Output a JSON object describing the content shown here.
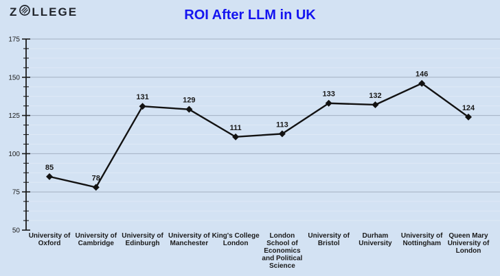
{
  "logo": {
    "prefix": "Z",
    "suffix": "LLEGE"
  },
  "title": "ROI After LLM in UK",
  "chart_data": {
    "type": "line",
    "title": "ROI After LLM in UK",
    "xlabel": "",
    "ylabel": "",
    "categories": [
      "University of Oxford",
      "University of Cambridge",
      "University of Edinburgh",
      "University of Manchester",
      "King's College London",
      "London School of Economics and Political Science",
      "University of Bristol",
      "Durham University",
      "University of Nottingham",
      "Queen Mary University of London"
    ],
    "category_label_lines": [
      [
        "University of",
        "Oxford"
      ],
      [
        "University of",
        "Cambridge"
      ],
      [
        "University of",
        "Edinburgh"
      ],
      [
        "University of",
        "Manchester"
      ],
      [
        "King's College",
        "London"
      ],
      [
        "London",
        "School of",
        "Economics",
        "and Political",
        "Science"
      ],
      [
        "University of",
        "Bristol"
      ],
      [
        "Durham",
        "University"
      ],
      [
        "University of",
        "Nottingham"
      ],
      [
        "Queen Mary",
        "University of",
        "London"
      ]
    ],
    "values": [
      85,
      78,
      131,
      129,
      111,
      113,
      133,
      132,
      146,
      124
    ],
    "ylim": [
      50,
      175
    ],
    "yticks": [
      50,
      75,
      100,
      125,
      150,
      175
    ],
    "minor_step": 6.25,
    "grid": true,
    "legend_position": "none",
    "marker": "diamond"
  },
  "style": {
    "background": "#d3e2f3",
    "title_color": "#1414f0",
    "logo_color": "#20242b",
    "line_color": "#121212",
    "marker_color": "#121212",
    "axis_color": "#1a1a1a",
    "grid_major_color": "#a3b0c2",
    "grid_minor_color": "#dfe9f6",
    "text_color": "#1a1a1a"
  }
}
